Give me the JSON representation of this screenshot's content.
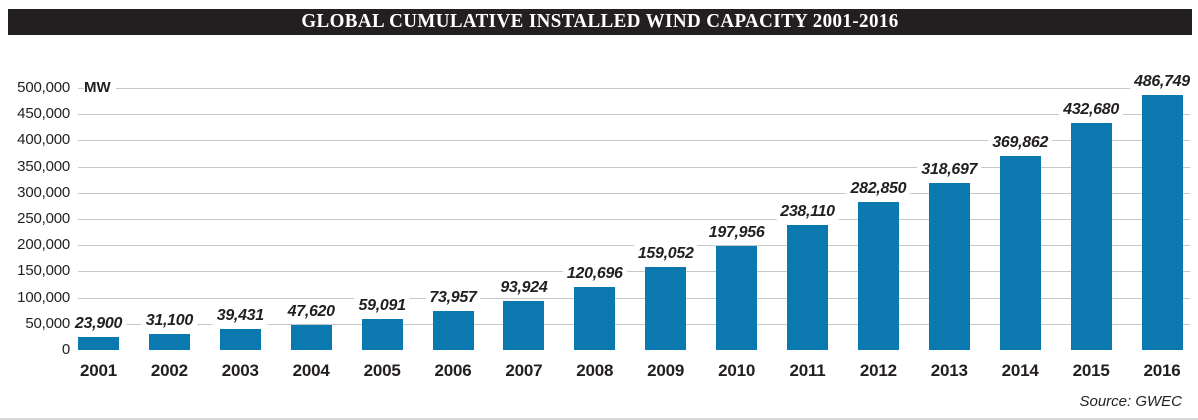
{
  "title": "GLOBAL CUMULATIVE INSTALLED WIND CAPACITY 2001-2016",
  "source": "Source: GWEC",
  "colors": {
    "bar": "#0b79af",
    "title_bg": "#231f20",
    "title_text": "#ffffff",
    "gridline": "#c7c7c7",
    "text": "#231f20"
  },
  "chart_data": {
    "type": "bar",
    "title": "GLOBAL CUMULATIVE INSTALLED WIND CAPACITY 2001-2016",
    "unit_label": "MW",
    "categories": [
      "2001",
      "2002",
      "2003",
      "2004",
      "2005",
      "2006",
      "2007",
      "2008",
      "2009",
      "2010",
      "2011",
      "2012",
      "2013",
      "2014",
      "2015",
      "2016"
    ],
    "values": [
      23900,
      31100,
      39431,
      47620,
      59091,
      73957,
      93924,
      120696,
      159052,
      197956,
      238110,
      282850,
      318697,
      369862,
      432680,
      486749
    ],
    "value_labels": [
      "23,900",
      "31,100",
      "39,431",
      "47,620",
      "59,091",
      "73,957",
      "93,924",
      "120,696",
      "159,052",
      "197,956",
      "238,110",
      "282,850",
      "318,697",
      "369,862",
      "432,680",
      "486,749"
    ],
    "xlabel": "",
    "ylabel": "MW",
    "ylim": [
      0,
      500000
    ],
    "ytick_step": 50000,
    "yticks": [
      "0",
      "50,000",
      "100,000",
      "150,000",
      "200,000",
      "250,000",
      "300,000",
      "350,000",
      "400,000",
      "450,000",
      "500,000"
    ],
    "grid": true,
    "legend_position": "none",
    "source": "Source: GWEC"
  }
}
